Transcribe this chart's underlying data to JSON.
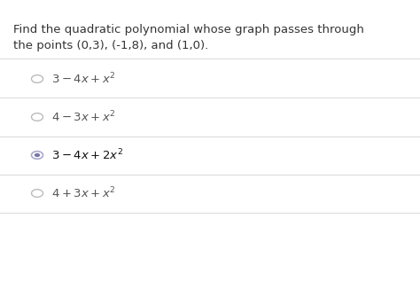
{
  "background_color": "#ffffff",
  "question_text_line1": "Find the quadratic polynomial whose graph passes through",
  "question_text_line2": "the points (0,3), (-1,8), and (1,0).",
  "options": [
    {
      "selected": false
    },
    {
      "selected": false
    },
    {
      "selected": true
    },
    {
      "selected": false
    }
  ],
  "option_labels": [
    "3 - 4x + x^2",
    "4 - 3x + x^2",
    "3 - 4x + 2x^2",
    "4 + 3x + x^2"
  ],
  "divider_color": "#dddddd",
  "radio_unselected_color": "#bbbbbb",
  "radio_selected_outer_color": "#aaaacc",
  "radio_selected_inner_color": "#7777aa",
  "question_font_size": 9.5,
  "option_font_size": 9.5,
  "text_color": "#333333",
  "option_text_color": "#555555",
  "selected_text_color": "#111111"
}
